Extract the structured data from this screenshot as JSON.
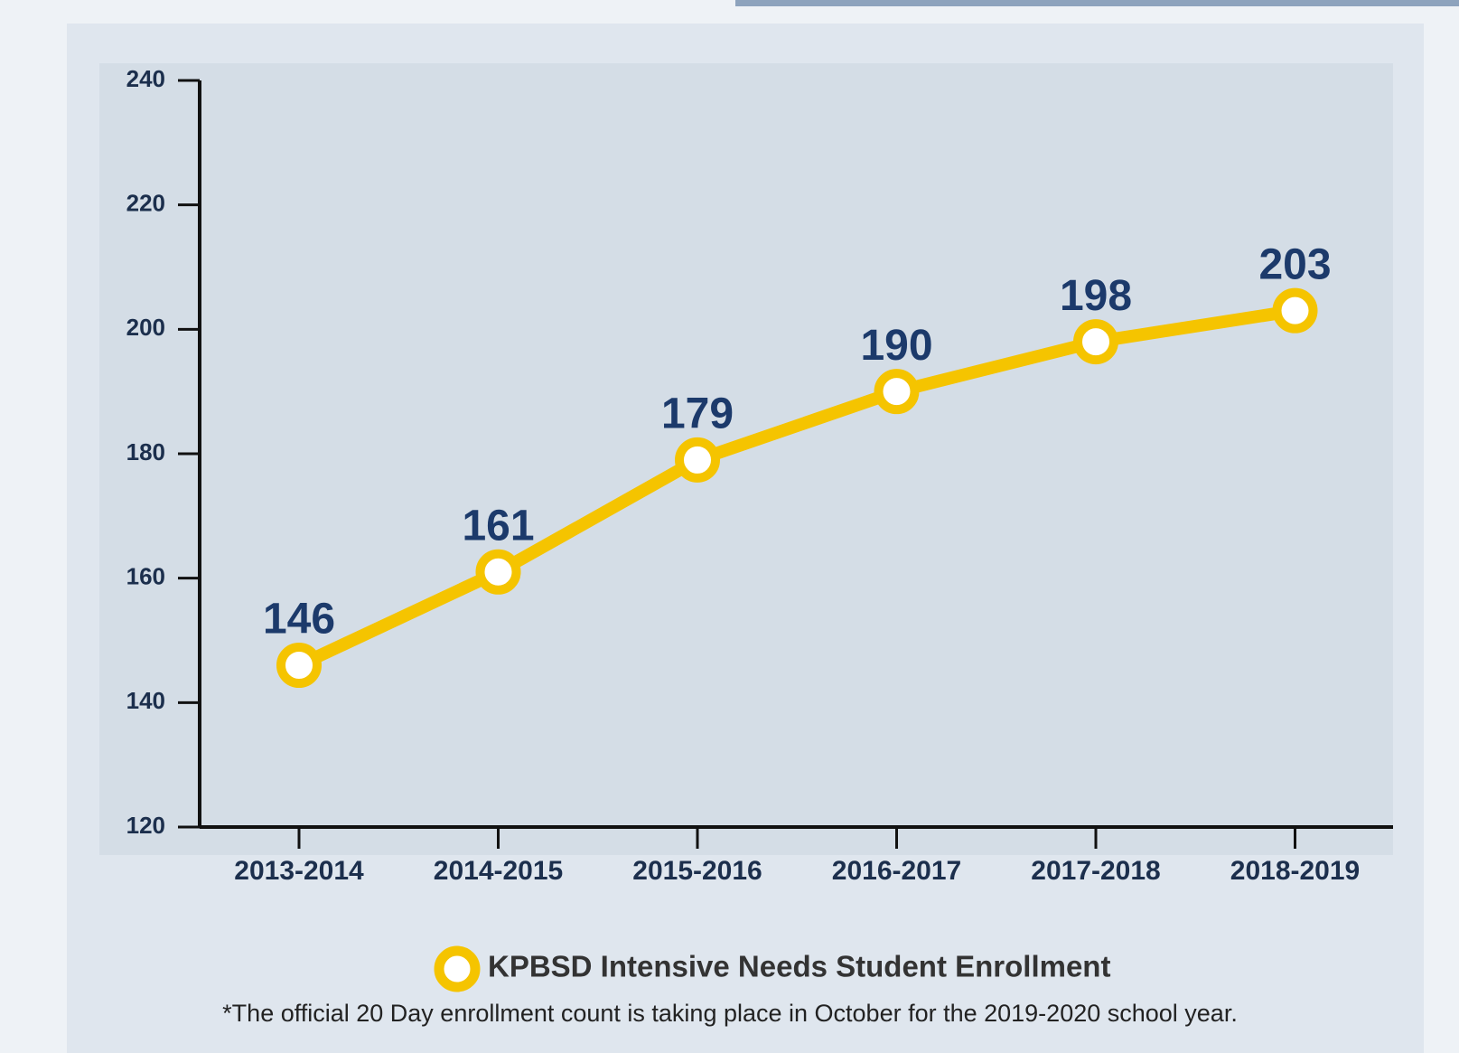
{
  "chart_data": {
    "type": "line",
    "categories": [
      "2013-2014",
      "2014-2015",
      "2015-2016",
      "2016-2017",
      "2017-2018",
      "2018-2019"
    ],
    "series": [
      {
        "name": "KPBSD Intensive Needs Student Enrollment",
        "color": "#f5c400",
        "values": [
          146,
          161,
          179,
          190,
          198,
          203
        ]
      }
    ],
    "ylim": [
      120,
      240
    ],
    "yticks": [
      120,
      140,
      160,
      180,
      200,
      220,
      240
    ],
    "note": "*The official 20 Day enrollment count is taking place in October for the 2019-2020 school year."
  }
}
